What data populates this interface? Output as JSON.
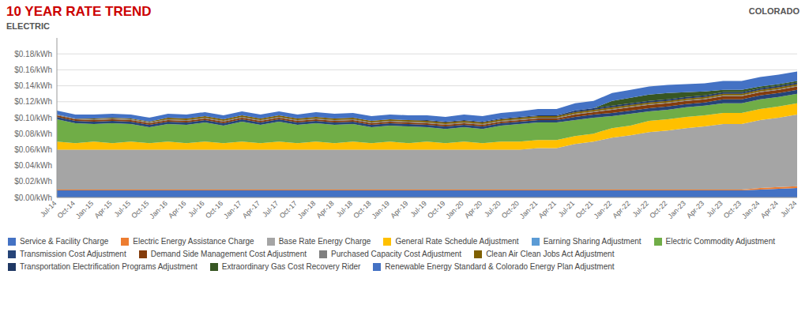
{
  "chart_data": {
    "type": "area",
    "stacked": true,
    "title": "10 YEAR RATE TREND",
    "subtitle": "ELECTRIC",
    "annotations": [
      "COLORADO"
    ],
    "grid": true,
    "legend": "bottom",
    "categories": [
      "Jul-14",
      "Oct-14",
      "Jan-15",
      "Apr-15",
      "Jul-15",
      "Oct-15",
      "Jan-16",
      "Apr-16",
      "Jul-16",
      "Oct-16",
      "Jan-17",
      "Apr-17",
      "Jul-17",
      "Oct-17",
      "Jan-18",
      "Apr-18",
      "Jul-18",
      "Oct-18",
      "Jan-19",
      "Apr-19",
      "Jul-19",
      "Oct-19",
      "Jan-20",
      "Apr-20",
      "Jul-20",
      "Oct-20",
      "Jan-21",
      "Apr-21",
      "Jul-21",
      "Oct-21",
      "Jan-22",
      "Apr-22",
      "Jul-22",
      "Oct-22",
      "Jan-23",
      "Apr-23",
      "Jul-23",
      "Oct-23",
      "Jan-24",
      "Apr-24",
      "Jul-24"
    ],
    "ylim": [
      0,
      0.2
    ],
    "yticks": [
      {
        "value": 0.0,
        "label": "$0.00/kWh"
      },
      {
        "value": 0.02,
        "label": "$0.02/kWh"
      },
      {
        "value": 0.04,
        "label": "$0.04/kWh"
      },
      {
        "value": 0.06,
        "label": "$0.06/kWh"
      },
      {
        "value": 0.08,
        "label": "$0.08/kWh"
      },
      {
        "value": 0.1,
        "label": "$0.10/kWh"
      },
      {
        "value": 0.12,
        "label": "$0.12/kWh"
      },
      {
        "value": 0.14,
        "label": "$0.14/kWh"
      },
      {
        "value": 0.16,
        "label": "$0.16/kWh"
      },
      {
        "value": 0.18,
        "label": "$0.18/kWh"
      }
    ],
    "series": [
      {
        "name": "Service & Facility Charge",
        "color": "#4472c4",
        "values": [
          0.009,
          0.009,
          0.009,
          0.009,
          0.009,
          0.009,
          0.009,
          0.009,
          0.009,
          0.009,
          0.009,
          0.009,
          0.009,
          0.009,
          0.009,
          0.009,
          0.009,
          0.009,
          0.009,
          0.009,
          0.009,
          0.009,
          0.009,
          0.009,
          0.009,
          0.009,
          0.009,
          0.009,
          0.009,
          0.009,
          0.009,
          0.009,
          0.009,
          0.009,
          0.009,
          0.009,
          0.009,
          0.009,
          0.01,
          0.011,
          0.012
        ]
      },
      {
        "name": "Electric Energy Assistance Charge",
        "color": "#ed7d31",
        "values": [
          0.001,
          0.001,
          0.001,
          0.001,
          0.001,
          0.001,
          0.001,
          0.001,
          0.001,
          0.001,
          0.001,
          0.001,
          0.001,
          0.001,
          0.001,
          0.001,
          0.001,
          0.001,
          0.001,
          0.001,
          0.001,
          0.001,
          0.001,
          0.001,
          0.001,
          0.001,
          0.001,
          0.001,
          0.001,
          0.001,
          0.001,
          0.001,
          0.001,
          0.001,
          0.001,
          0.001,
          0.001,
          0.001,
          0.002,
          0.002,
          0.002
        ]
      },
      {
        "name": "Base Rate Energy Charge",
        "color": "#a5a5a5",
        "values": [
          0.05,
          0.05,
          0.05,
          0.05,
          0.05,
          0.05,
          0.05,
          0.05,
          0.05,
          0.05,
          0.05,
          0.05,
          0.05,
          0.05,
          0.05,
          0.05,
          0.05,
          0.05,
          0.05,
          0.05,
          0.05,
          0.05,
          0.05,
          0.05,
          0.05,
          0.05,
          0.052,
          0.052,
          0.057,
          0.06,
          0.065,
          0.068,
          0.072,
          0.074,
          0.077,
          0.079,
          0.082,
          0.082,
          0.085,
          0.087,
          0.09
        ]
      },
      {
        "name": "General Rate Schedule Adjustment",
        "color": "#ffc000",
        "values": [
          0.01,
          0.008,
          0.01,
          0.008,
          0.01,
          0.008,
          0.01,
          0.008,
          0.01,
          0.008,
          0.01,
          0.008,
          0.01,
          0.008,
          0.01,
          0.008,
          0.01,
          0.008,
          0.01,
          0.008,
          0.01,
          0.008,
          0.01,
          0.008,
          0.01,
          0.01,
          0.01,
          0.01,
          0.01,
          0.01,
          0.012,
          0.012,
          0.014,
          0.014,
          0.014,
          0.014,
          0.014,
          0.014,
          0.014,
          0.014,
          0.014
        ]
      },
      {
        "name": "Earning Sharing Adjustment",
        "color": "#5b9bd5",
        "values": [
          0,
          0,
          0,
          0,
          0,
          0,
          0,
          0,
          0,
          0,
          0,
          0,
          0,
          0,
          0,
          0,
          0,
          0,
          0,
          0,
          0,
          0,
          0,
          0,
          0,
          0,
          0,
          0,
          0,
          0,
          0,
          0,
          0,
          0,
          0,
          0,
          0,
          0,
          0,
          0,
          0
        ]
      },
      {
        "name": "Electric Commodity Adjustment",
        "color": "#70ad47",
        "values": [
          0.028,
          0.025,
          0.022,
          0.025,
          0.022,
          0.02,
          0.022,
          0.023,
          0.024,
          0.022,
          0.025,
          0.023,
          0.025,
          0.023,
          0.023,
          0.023,
          0.022,
          0.02,
          0.02,
          0.021,
          0.018,
          0.018,
          0.018,
          0.018,
          0.02,
          0.022,
          0.022,
          0.022,
          0.02,
          0.02,
          0.015,
          0.015,
          0.012,
          0.012,
          0.012,
          0.012,
          0.012,
          0.012,
          0.012,
          0.012,
          0.012
        ]
      },
      {
        "name": "Transmission Cost Adjustment",
        "color": "#264478",
        "values": [
          0.003,
          0.003,
          0.003,
          0.003,
          0.003,
          0.003,
          0.003,
          0.003,
          0.003,
          0.003,
          0.003,
          0.003,
          0.003,
          0.003,
          0.003,
          0.003,
          0.003,
          0.003,
          0.003,
          0.003,
          0.003,
          0.003,
          0.003,
          0.003,
          0.003,
          0.003,
          0.003,
          0.003,
          0.004,
          0.004,
          0.004,
          0.004,
          0.004,
          0.004,
          0.004,
          0.004,
          0.005,
          0.005,
          0.005,
          0.005,
          0.005
        ]
      },
      {
        "name": "Demand Side Management Cost Adjustment",
        "color": "#843c0c",
        "values": [
          0.002,
          0.002,
          0.002,
          0.002,
          0.002,
          0.002,
          0.002,
          0.002,
          0.002,
          0.002,
          0.002,
          0.002,
          0.002,
          0.002,
          0.002,
          0.002,
          0.002,
          0.002,
          0.002,
          0.002,
          0.002,
          0.002,
          0.002,
          0.002,
          0.002,
          0.002,
          0.002,
          0.002,
          0.003,
          0.003,
          0.004,
          0.004,
          0.004,
          0.004,
          0.004,
          0.004,
          0.004,
          0.004,
          0.004,
          0.004,
          0.004
        ]
      },
      {
        "name": "Purchased Capacity Cost Adjustment",
        "color": "#7f7f7f",
        "values": [
          0.001,
          0.001,
          0.001,
          0.001,
          0.001,
          0.001,
          0.001,
          0.001,
          0.001,
          0.001,
          0.001,
          0.001,
          0.001,
          0.001,
          0.001,
          0.001,
          0.001,
          0.001,
          0.001,
          0.001,
          0.001,
          0.001,
          0.001,
          0.001,
          0.001,
          0.001,
          0.001,
          0.001,
          0.001,
          0.001,
          0.001,
          0.001,
          0.001,
          0.001,
          0.001,
          0.001,
          0.001,
          0.001,
          0.001,
          0.001,
          0.001
        ]
      },
      {
        "name": "Clean Air Clean Jobs Act Adjustment",
        "color": "#7f6000",
        "values": [
          0.0,
          0.0,
          0.001,
          0.001,
          0.001,
          0.001,
          0.002,
          0.002,
          0.002,
          0.002,
          0.002,
          0.002,
          0.002,
          0.002,
          0.002,
          0.002,
          0.002,
          0.002,
          0.002,
          0.002,
          0.002,
          0.002,
          0.002,
          0.002,
          0.002,
          0.002,
          0.002,
          0.002,
          0.002,
          0.002,
          0.002,
          0.002,
          0.002,
          0.002,
          0.002,
          0.002,
          0.002,
          0.002,
          0.002,
          0.002,
          0.002
        ]
      },
      {
        "name": "Transportation Electrification Programs Adjustment",
        "color": "#203864",
        "values": [
          0.0,
          0.0,
          0.0,
          0.0,
          0.0,
          0.0,
          0.0,
          0.0,
          0.0,
          0.0,
          0.0,
          0.0,
          0.0,
          0.0,
          0.0,
          0.0,
          0.0,
          0.0,
          0.0,
          0.0,
          0.001,
          0.001,
          0.001,
          0.001,
          0.001,
          0.001,
          0.001,
          0.001,
          0.002,
          0.002,
          0.002,
          0.002,
          0.002,
          0.002,
          0.002,
          0.002,
          0.002,
          0.002,
          0.002,
          0.002,
          0.002
        ]
      },
      {
        "name": "Extraordinary Gas Cost Recovery Rider",
        "color": "#375623",
        "values": [
          0.0,
          0.0,
          0.0,
          0.0,
          0.0,
          0.0,
          0.0,
          0.0,
          0.0,
          0.0,
          0.0,
          0.0,
          0.0,
          0.0,
          0.0,
          0.0,
          0.0,
          0.0,
          0.0,
          0.0,
          0.0,
          0.0,
          0.0,
          0.0,
          0.0,
          0.0,
          0.0,
          0.0,
          0.0,
          0.0,
          0.006,
          0.007,
          0.008,
          0.008,
          0.006,
          0.005,
          0.003,
          0.003,
          0.002,
          0.002,
          0.002
        ]
      },
      {
        "name": "Renewable Energy Standard & Colorado Energy Plan Adjustment",
        "color": "#4472c4",
        "values": [
          0.005,
          0.005,
          0.005,
          0.005,
          0.005,
          0.005,
          0.005,
          0.005,
          0.005,
          0.005,
          0.005,
          0.005,
          0.005,
          0.005,
          0.006,
          0.006,
          0.006,
          0.006,
          0.006,
          0.006,
          0.006,
          0.006,
          0.007,
          0.007,
          0.007,
          0.007,
          0.008,
          0.008,
          0.009,
          0.009,
          0.01,
          0.01,
          0.01,
          0.01,
          0.01,
          0.01,
          0.011,
          0.011,
          0.012,
          0.012,
          0.012
        ]
      }
    ]
  }
}
